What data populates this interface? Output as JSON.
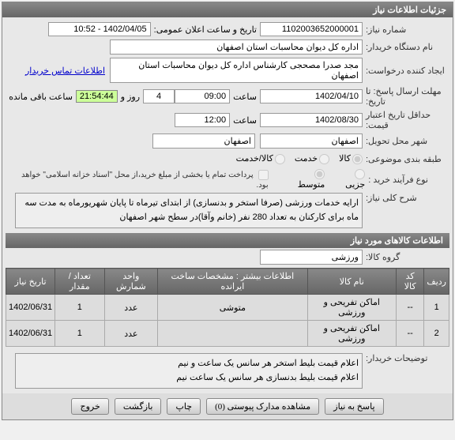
{
  "header": {
    "title": "جزئیات اطلاعات نیاز"
  },
  "fields": {
    "need_no_label": "شماره نیاز:",
    "need_no": "1102003652000001",
    "announce_label": "تاریخ و ساعت اعلان عمومی:",
    "announce": "1402/04/05 - 10:52",
    "org_label": "نام دستگاه خریدار:",
    "org": "اداره کل دیوان محاسبات استان اصفهان",
    "creator_label": "ایجاد کننده درخواست:",
    "creator": "مجد صدرا مصحجی کارشناس اداره کل دیوان محاسبات استان اصفهان",
    "contact_link": "اطلاعات تماس خریدار",
    "deadline_send_label": "مهلت ارسال پاسخ: تا تاریخ:",
    "deadline_send_date": "1402/04/10",
    "deadline_send_time": "09:00",
    "time_word": "ساعت",
    "days_remain": "4",
    "days_word": "روز و",
    "countdown": "21:54:44",
    "remain_word": "ساعت باقی مانده",
    "validity_label": "حداقل تاریخ اعتبار قیمت:",
    "validity_date": "1402/08/30",
    "validity_time": "12:00",
    "delivery_city_label": "شهر محل تحویل:",
    "delivery_city": "اصفهان",
    "province": "اصفهان",
    "category_label": "طبقه بندی موضوعی:",
    "cat_goods": "کالا",
    "cat_service": "خدمت",
    "cat_goods_service": "کالا/خدمت",
    "process_label": "نوع فرآیند خرید :",
    "proc_minor": "جزیی",
    "proc_medium": "متوسط",
    "pay_note": "پرداخت تمام یا بخشی از مبلغ خرید،از محل \"اسناد خزانه اسلامی\" خواهد بود.",
    "summary_label": "شرح کلی نیاز:",
    "summary": "ارایه خدمات ورزشی (صرفا استخر و بدنسازی) از ابتدای تیرماه تا پایان شهریورماه به مدت سه ماه برای کارکنان به تعداد 280 نفر (خانم وآقا)در سطح شهر اصفهان",
    "goods_header": "اطلاعات کالاهای مورد نیاز",
    "group_label": "گروه کالا:",
    "group": "ورزشی",
    "buyer_notes_label": "توضیحات خریدار:",
    "buyer_notes_l1": "اعلام قیمت بلیط استخر هر سانس یک ساعت و نیم",
    "buyer_notes_l2": "اعلام قیمت بلیط بدنسازی هر سانس یک ساعت نیم"
  },
  "table": {
    "headers": {
      "row": "ردیف",
      "code": "کد کالا",
      "name": "نام کالا",
      "spec": "اطلاعات بیشتر : مشخصات ساخت ایرانده",
      "unit": "واحد شمارش",
      "qty": "تعداد / مقدار",
      "date": "تاریخ نیاز"
    },
    "rows": [
      {
        "n": "1",
        "code": "--",
        "name": "اماکن تفریحی و ورزشی",
        "spec": "متوشی",
        "unit": "عدد",
        "qty": "1",
        "date": "1402/06/31"
      },
      {
        "n": "2",
        "code": "--",
        "name": "اماکن تفریحی و ورزشی",
        "spec": "",
        "unit": "عدد",
        "qty": "1",
        "date": "1402/06/31"
      }
    ]
  },
  "buttons": {
    "reply": "پاسخ به نیاز",
    "attach": "مشاهده مدارک پیوستی (0)",
    "print": "چاپ",
    "back": "بازگشت",
    "exit": "خروج"
  }
}
